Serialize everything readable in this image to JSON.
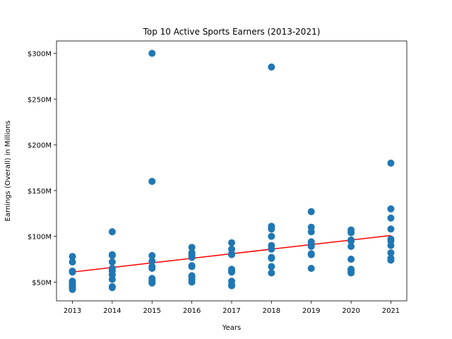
{
  "chart_data": {
    "type": "scatter",
    "title": "Top 10 Active Sports Earners (2013-2021)",
    "xlabel": "Years",
    "ylabel": "Earnings (Overall) in Millions",
    "x_ticks": [
      "2013",
      "2014",
      "2015",
      "2016",
      "2017",
      "2018",
      "2019",
      "2020",
      "2021"
    ],
    "y_ticks": [
      {
        "value": 50,
        "label": "$50M"
      },
      {
        "value": 100,
        "label": "$100M"
      },
      {
        "value": 150,
        "label": "$150M"
      },
      {
        "value": 200,
        "label": "$200M"
      },
      {
        "value": 250,
        "label": "$250M"
      },
      {
        "value": 300,
        "label": "$300M"
      }
    ],
    "xlim": [
      2012.6,
      2021.4
    ],
    "ylim": [
      29.5,
      313.5
    ],
    "grid": false,
    "point_color": "#1f77b4",
    "trend_color": "#ff0000",
    "series": [
      {
        "marker": "scatter",
        "points": [
          [
            2013,
            78
          ],
          [
            2013,
            72
          ],
          [
            2013,
            62
          ],
          [
            2013,
            61
          ],
          [
            2013,
            51
          ],
          [
            2013,
            49
          ],
          [
            2013,
            47
          ],
          [
            2013,
            45
          ],
          [
            2013,
            44
          ],
          [
            2013,
            42
          ],
          [
            2014,
            105
          ],
          [
            2014,
            80
          ],
          [
            2014,
            79
          ],
          [
            2014,
            72
          ],
          [
            2014,
            65
          ],
          [
            2014,
            62
          ],
          [
            2014,
            58
          ],
          [
            2014,
            53
          ],
          [
            2014,
            45
          ],
          [
            2014,
            44
          ],
          [
            2015,
            300
          ],
          [
            2015,
            160
          ],
          [
            2015,
            79
          ],
          [
            2015,
            73
          ],
          [
            2015,
            67
          ],
          [
            2015,
            65
          ],
          [
            2015,
            54
          ],
          [
            2015,
            52
          ],
          [
            2015,
            50
          ],
          [
            2015,
            49
          ],
          [
            2016,
            88
          ],
          [
            2016,
            82
          ],
          [
            2016,
            80
          ],
          [
            2016,
            77
          ],
          [
            2016,
            68
          ],
          [
            2016,
            67
          ],
          [
            2016,
            57
          ],
          [
            2016,
            56
          ],
          [
            2016,
            53
          ],
          [
            2016,
            50
          ],
          [
            2017,
            93
          ],
          [
            2017,
            86
          ],
          [
            2017,
            81
          ],
          [
            2017,
            80
          ],
          [
            2017,
            64
          ],
          [
            2017,
            62
          ],
          [
            2017,
            61
          ],
          [
            2017,
            51
          ],
          [
            2017,
            47
          ],
          [
            2017,
            46
          ],
          [
            2018,
            285
          ],
          [
            2018,
            111
          ],
          [
            2018,
            108
          ],
          [
            2018,
            100
          ],
          [
            2018,
            90
          ],
          [
            2018,
            86
          ],
          [
            2018,
            77
          ],
          [
            2018,
            76
          ],
          [
            2018,
            67
          ],
          [
            2018,
            60
          ],
          [
            2019,
            127
          ],
          [
            2019,
            110
          ],
          [
            2019,
            105
          ],
          [
            2019,
            94
          ],
          [
            2019,
            92
          ],
          [
            2019,
            90
          ],
          [
            2019,
            89
          ],
          [
            2019,
            81
          ],
          [
            2019,
            80
          ],
          [
            2019,
            65
          ],
          [
            2020,
            107
          ],
          [
            2020,
            104
          ],
          [
            2020,
            96
          ],
          [
            2020,
            95
          ],
          [
            2020,
            89
          ],
          [
            2020,
            75
          ],
          [
            2020,
            64
          ],
          [
            2020,
            63
          ],
          [
            2020,
            61
          ],
          [
            2020,
            60
          ],
          [
            2021,
            180
          ],
          [
            2021,
            130
          ],
          [
            2021,
            120
          ],
          [
            2021,
            108
          ],
          [
            2021,
            97
          ],
          [
            2021,
            95
          ],
          [
            2021,
            90
          ],
          [
            2021,
            82
          ],
          [
            2021,
            76
          ],
          [
            2021,
            74
          ]
        ]
      },
      {
        "marker": "line",
        "points": [
          [
            2013,
            61
          ],
          [
            2021,
            101
          ]
        ]
      }
    ]
  }
}
